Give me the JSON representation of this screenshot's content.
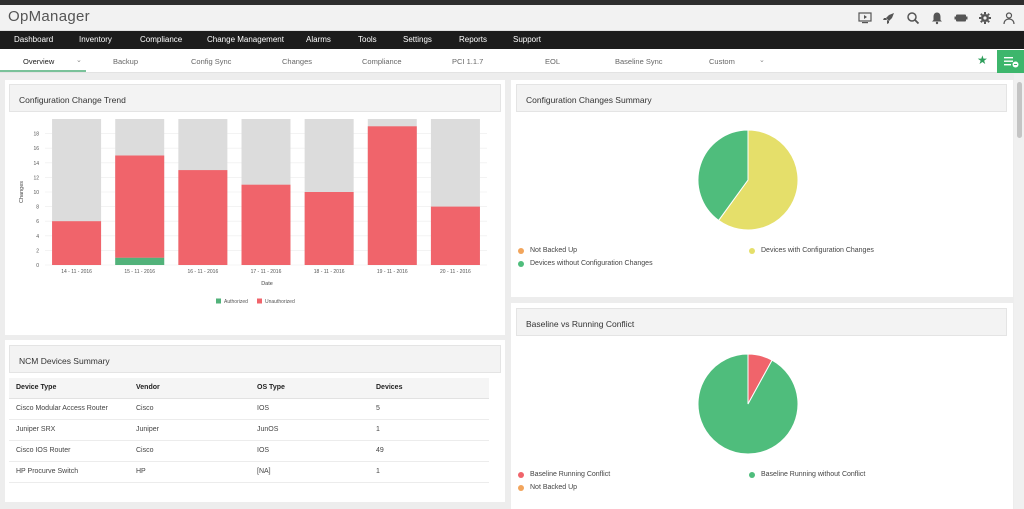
{
  "app": {
    "title": "OpManager"
  },
  "main_nav": [
    {
      "label": "Dashboard"
    },
    {
      "label": "Inventory"
    },
    {
      "label": "Compliance"
    },
    {
      "label": "Change Management"
    },
    {
      "label": "Alarms"
    },
    {
      "label": "Tools"
    },
    {
      "label": "Settings"
    },
    {
      "label": "Reports"
    },
    {
      "label": "Support"
    }
  ],
  "sub_nav": [
    {
      "label": "Overview",
      "active": true
    },
    {
      "label": "Backup"
    },
    {
      "label": "Config Sync"
    },
    {
      "label": "Changes"
    },
    {
      "label": "Compliance"
    },
    {
      "label": "PCI 1.1.7"
    },
    {
      "label": "EOL"
    },
    {
      "label": "Baseline Sync"
    },
    {
      "label": "Custom"
    }
  ],
  "header_icons": [
    "monitor-icon",
    "rocket-icon",
    "search-icon",
    "bell-icon",
    "battery-icon",
    "gear-icon",
    "user-icon"
  ],
  "colors": {
    "accent_green": "#3db66c",
    "authorized": "#52b27a",
    "unauthorized": "#f0646b",
    "bar_bg": "#dcdcdc",
    "not_backed_up": "#f2a55c",
    "with_changes": "#e5df6a",
    "without_changes": "#4fbd7c",
    "conflict": "#f0646b",
    "no_conflict": "#4fbd7c"
  },
  "panels": {
    "trend": {
      "title": "Configuration Change Trend"
    },
    "summary": {
      "title": "Configuration Changes Summary",
      "legend": [
        "Not Backed Up",
        "Devices with Configuration Changes",
        "Devices without Configuration Changes"
      ]
    },
    "devices": {
      "title": "NCM Devices Summary",
      "columns": [
        "Device Type",
        "Vendor",
        "OS Type",
        "Devices"
      ],
      "rows": [
        [
          "Cisco Modular Access Router",
          "Cisco",
          "IOS",
          "5"
        ],
        [
          "Juniper SRX",
          "Juniper",
          "JunOS",
          "1"
        ],
        [
          "Cisco IOS Router",
          "Cisco",
          "IOS",
          "49"
        ],
        [
          "HP Procurve Switch",
          "HP",
          "[NA]",
          "1"
        ]
      ]
    },
    "baseline": {
      "title": "Baseline vs Running Conflict",
      "legend": [
        "Baseline Running Conflict",
        "Baseline Running without Conflict",
        "Not Backed Up"
      ]
    }
  },
  "chart_data": [
    {
      "type": "bar",
      "stacked": true,
      "categories": [
        "14 - 11 - 2016",
        "15 - 11 - 2016",
        "16 - 11 - 2016",
        "17 - 11 - 2016",
        "18 - 11 - 2016",
        "19 - 11 - 2016",
        "20 - 11 - 2016"
      ],
      "series": [
        {
          "name": "Authorized",
          "values": [
            0,
            1,
            0,
            0,
            0,
            0,
            0
          ]
        },
        {
          "name": "Unauthorized",
          "values": [
            6,
            14,
            13,
            11,
            10,
            19,
            8
          ]
        }
      ],
      "xlabel": "Date",
      "ylabel": "Changes",
      "ylim": [
        0,
        20
      ],
      "yticks": [
        0,
        2,
        4,
        6,
        8,
        10,
        12,
        14,
        16,
        18
      ],
      "grid": true,
      "legend_position": "bottom"
    },
    {
      "type": "pie",
      "labels": [
        "Devices with Configuration Changes",
        "Devices without Configuration Changes",
        "Not Backed Up"
      ],
      "values": [
        60,
        40,
        0
      ]
    },
    {
      "type": "pie",
      "labels": [
        "Baseline Running Conflict",
        "Baseline Running without Conflict",
        "Not Backed Up"
      ],
      "values": [
        8,
        92,
        0
      ]
    }
  ]
}
